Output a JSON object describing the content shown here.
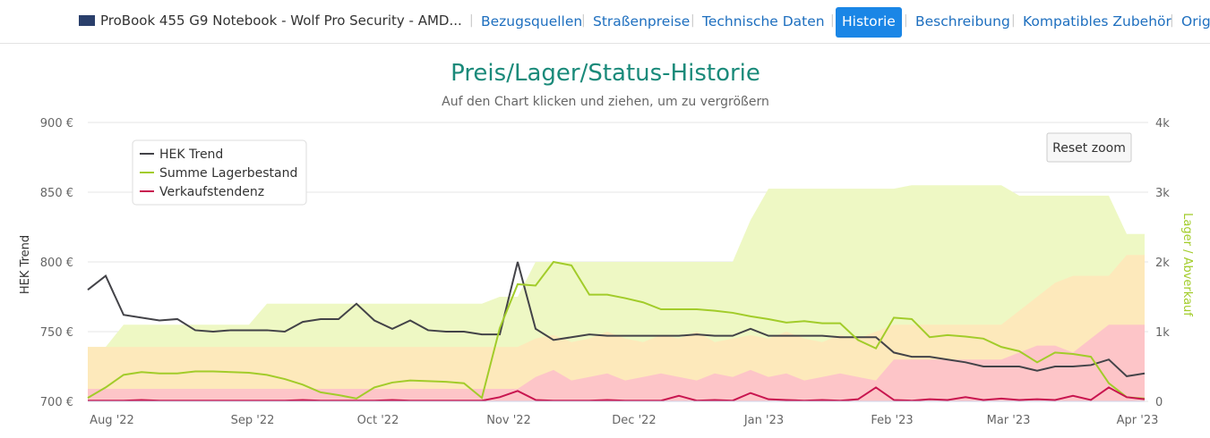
{
  "nav": {
    "product": "ProBook 455 G9 Notebook - Wolf Pro Security - AMD...",
    "items": [
      "Bezugsquellen",
      "Straßenpreise",
      "Technische Daten",
      "Historie",
      "Beschreibung",
      "Kompatibles Zubehör",
      "Orig"
    ],
    "active": "Historie"
  },
  "chart_data": {
    "type": "line",
    "title": "Preis/Lager/Status-Historie",
    "subtitle": "Auf den Chart klicken und ziehen, um zu vergrößern",
    "y_label": "HEK Trend",
    "y2_label": "Lager / Abverkauf",
    "reset_button": "Reset zoom",
    "xlabels": [
      "Aug '22",
      "Sep '22",
      "Oct '22",
      "Nov '22",
      "Dec '22",
      "Jan '23",
      "Feb '23",
      "Mar '23",
      "Apr '23"
    ],
    "ylim": [
      700,
      900
    ],
    "yticks": [
      {
        "value": 700,
        "label": "700 €"
      },
      {
        "value": 750,
        "label": "750 €"
      },
      {
        "value": 800,
        "label": "800 €"
      },
      {
        "value": 850,
        "label": "850 €"
      },
      {
        "value": 900,
        "label": "900 €"
      }
    ],
    "y2lim": [
      0,
      4000
    ],
    "y2ticks": [
      0,
      {
        "value": 1000,
        "label": "1k"
      },
      {
        "value": 2000,
        "label": "2k"
      },
      {
        "value": 3000,
        "label": "3k"
      },
      {
        "value": 4000,
        "label": "4k"
      }
    ],
    "grid": true,
    "legend": "top-left",
    "areas": [
      {
        "color": "#eef8c4",
        "axis": "y2",
        "values": [
          780,
          780,
          1100,
          1100,
          1100,
          1100,
          1100,
          1100,
          1100,
          1100,
          1400,
          1400,
          1400,
          1400,
          1400,
          1400,
          1400,
          1400,
          1400,
          1400,
          1400,
          1400,
          1400,
          1500,
          1500,
          2000,
          2000,
          2000,
          2000,
          2000,
          2000,
          2000,
          2000,
          2000,
          2000,
          2000,
          2000,
          2600,
          3050,
          3050,
          3050,
          3050,
          3050,
          3050,
          3050,
          3050,
          3100,
          3100,
          3100,
          3100,
          3100,
          3100,
          2950,
          2950,
          2950,
          2950,
          2950,
          2950,
          2400,
          2400
        ]
      },
      {
        "color": "#fde9bb",
        "axis": "y2",
        "values": [
          780,
          780,
          780,
          780,
          780,
          780,
          780,
          780,
          780,
          780,
          780,
          780,
          780,
          780,
          780,
          780,
          780,
          780,
          780,
          780,
          780,
          780,
          780,
          780,
          780,
          900,
          950,
          850,
          900,
          1000,
          900,
          850,
          950,
          900,
          1000,
          850,
          900,
          950,
          900,
          1000,
          900,
          850,
          950,
          900,
          1000,
          1100,
          1100,
          1100,
          1100,
          1100,
          1100,
          1100,
          1300,
          1500,
          1700,
          1800,
          1800,
          1800,
          2100,
          2100
        ]
      },
      {
        "color": "#fdc5c8",
        "axis": "y2",
        "values": [
          180,
          180,
          180,
          180,
          180,
          180,
          180,
          180,
          180,
          180,
          180,
          180,
          180,
          180,
          180,
          180,
          180,
          180,
          180,
          180,
          180,
          180,
          180,
          180,
          180,
          350,
          450,
          300,
          350,
          400,
          300,
          350,
          400,
          350,
          300,
          400,
          350,
          450,
          350,
          400,
          300,
          350,
          400,
          350,
          300,
          600,
          600,
          600,
          600,
          600,
          600,
          600,
          700,
          800,
          800,
          700,
          900,
          1100,
          1100,
          1100
        ]
      }
    ],
    "series": [
      {
        "name": "HEK Trend",
        "color": "#434348",
        "values": [
          780,
          790,
          762,
          760,
          758,
          759,
          751,
          750,
          751,
          751,
          751,
          750,
          757,
          759,
          759,
          770,
          758,
          752,
          758,
          751,
          750,
          750,
          748,
          748,
          800,
          752,
          744,
          746,
          748,
          747,
          747,
          747,
          747,
          747,
          748,
          747,
          747,
          752,
          747,
          747,
          747,
          747,
          746,
          746,
          746,
          735,
          732,
          732,
          730,
          728,
          725,
          725,
          725,
          722,
          725,
          725,
          726,
          730,
          718,
          720
        ]
      },
      {
        "name": "Summe Lagerbestand",
        "color": "#a2cc2a",
        "axis": "y2",
        "values": [
          50,
          200,
          380,
          420,
          400,
          400,
          430,
          430,
          420,
          410,
          380,
          320,
          240,
          130,
          90,
          40,
          200,
          270,
          300,
          290,
          280,
          260,
          50,
          1050,
          1680,
          1660,
          2000,
          1950,
          1530,
          1530,
          1480,
          1420,
          1320,
          1320,
          1320,
          1300,
          1270,
          1220,
          1180,
          1130,
          1150,
          1120,
          1120,
          880,
          760,
          1200,
          1180,
          920,
          950,
          930,
          900,
          780,
          720,
          560,
          700,
          680,
          640,
          260,
          60,
          40
        ]
      },
      {
        "name": "Verkaufstendenz",
        "color": "#c8154f",
        "axis": "y2",
        "values": [
          10,
          10,
          10,
          20,
          10,
          10,
          10,
          10,
          10,
          10,
          10,
          10,
          20,
          10,
          10,
          10,
          10,
          20,
          10,
          10,
          10,
          10,
          10,
          60,
          150,
          20,
          10,
          10,
          10,
          20,
          10,
          10,
          10,
          80,
          10,
          20,
          10,
          120,
          30,
          20,
          10,
          20,
          10,
          30,
          200,
          20,
          10,
          30,
          20,
          60,
          20,
          40,
          20,
          30,
          20,
          80,
          20,
          200,
          60,
          30
        ]
      }
    ]
  }
}
